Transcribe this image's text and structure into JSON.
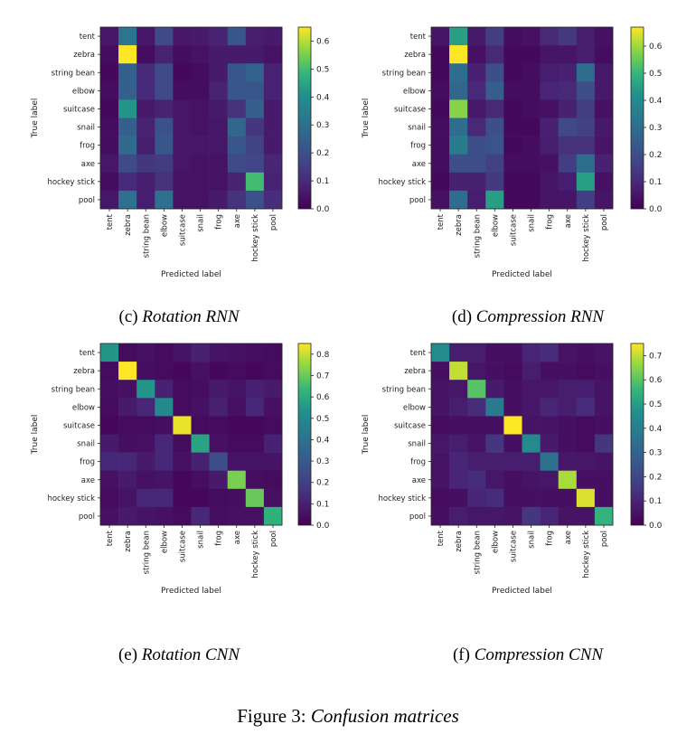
{
  "figure_caption": {
    "prefix": "Figure 3: ",
    "title": "Confusion matrices"
  },
  "chart_data": [
    {
      "type": "heatmap",
      "caption": {
        "label": "(c) ",
        "title": "Rotation RNN"
      },
      "xlabel": "Predicted label",
      "ylabel": "True label",
      "x_labels": [
        "tent",
        "zebra",
        "string bean",
        "elbow",
        "suitcase",
        "snail",
        "frog",
        "axe",
        "hockey stick",
        "pool"
      ],
      "y_labels": [
        "tent",
        "zebra",
        "string bean",
        "elbow",
        "suitcase",
        "snail",
        "frog",
        "axe",
        "hockey stick",
        "pool"
      ],
      "colorscale": "viridis",
      "vmin": 0.0,
      "vmax": 0.65,
      "colorbar_ticks": [
        "0.0",
        "0.1",
        "0.2",
        "0.3",
        "0.4",
        "0.5",
        "0.6"
      ],
      "values": [
        [
          0.05,
          0.32,
          0.05,
          0.18,
          0.05,
          0.06,
          0.08,
          0.22,
          0.07,
          0.06
        ],
        [
          0.03,
          0.65,
          0.03,
          0.08,
          0.03,
          0.04,
          0.06,
          0.06,
          0.06,
          0.04
        ],
        [
          0.02,
          0.25,
          0.1,
          0.18,
          0.02,
          0.03,
          0.06,
          0.22,
          0.26,
          0.08
        ],
        [
          0.03,
          0.25,
          0.1,
          0.18,
          0.03,
          0.03,
          0.08,
          0.22,
          0.22,
          0.08
        ],
        [
          0.02,
          0.42,
          0.06,
          0.08,
          0.05,
          0.04,
          0.06,
          0.12,
          0.25,
          0.06
        ],
        [
          0.03,
          0.25,
          0.08,
          0.2,
          0.05,
          0.04,
          0.05,
          0.27,
          0.13,
          0.06
        ],
        [
          0.03,
          0.28,
          0.07,
          0.22,
          0.05,
          0.05,
          0.05,
          0.22,
          0.16,
          0.06
        ],
        [
          0.05,
          0.18,
          0.13,
          0.14,
          0.05,
          0.04,
          0.04,
          0.18,
          0.17,
          0.09
        ],
        [
          0.03,
          0.1,
          0.07,
          0.12,
          0.04,
          0.04,
          0.04,
          0.08,
          0.5,
          0.08
        ],
        [
          0.05,
          0.3,
          0.07,
          0.3,
          0.04,
          0.04,
          0.06,
          0.12,
          0.2,
          0.11
        ]
      ]
    },
    {
      "type": "heatmap",
      "caption": {
        "label": "(d) ",
        "title": "Compression RNN"
      },
      "xlabel": "Predicted label",
      "ylabel": "True label",
      "x_labels": [
        "tent",
        "zebra",
        "string bean",
        "elbow",
        "suitcase",
        "snail",
        "frog",
        "axe",
        "hockey stick",
        "pool"
      ],
      "y_labels": [
        "tent",
        "zebra",
        "string bean",
        "elbow",
        "suitcase",
        "snail",
        "frog",
        "axe",
        "hockey stick",
        "pool"
      ],
      "colorscale": "viridis",
      "vmin": 0.0,
      "vmax": 0.67,
      "colorbar_ticks": [
        "0.0",
        "0.1",
        "0.2",
        "0.3",
        "0.4",
        "0.5",
        "0.6"
      ],
      "values": [
        [
          0.05,
          0.45,
          0.06,
          0.15,
          0.03,
          0.04,
          0.1,
          0.14,
          0.07,
          0.04
        ],
        [
          0.02,
          0.67,
          0.04,
          0.1,
          0.02,
          0.02,
          0.05,
          0.05,
          0.07,
          0.03
        ],
        [
          0.02,
          0.3,
          0.08,
          0.2,
          0.02,
          0.03,
          0.07,
          0.08,
          0.3,
          0.06
        ],
        [
          0.03,
          0.28,
          0.1,
          0.25,
          0.03,
          0.03,
          0.09,
          0.1,
          0.2,
          0.06
        ],
        [
          0.02,
          0.58,
          0.06,
          0.1,
          0.02,
          0.03,
          0.04,
          0.08,
          0.15,
          0.04
        ],
        [
          0.03,
          0.3,
          0.1,
          0.2,
          0.02,
          0.02,
          0.08,
          0.18,
          0.16,
          0.06
        ],
        [
          0.03,
          0.35,
          0.2,
          0.22,
          0.02,
          0.03,
          0.07,
          0.12,
          0.12,
          0.05
        ],
        [
          0.03,
          0.2,
          0.2,
          0.16,
          0.03,
          0.03,
          0.04,
          0.15,
          0.3,
          0.08
        ],
        [
          0.02,
          0.08,
          0.08,
          0.14,
          0.02,
          0.02,
          0.05,
          0.07,
          0.45,
          0.04
        ],
        [
          0.04,
          0.3,
          0.07,
          0.45,
          0.02,
          0.02,
          0.05,
          0.05,
          0.15,
          0.05
        ]
      ]
    },
    {
      "type": "heatmap",
      "caption": {
        "label": "(e) ",
        "title": "Rotation CNN"
      },
      "xlabel": "Predicted label",
      "ylabel": "True label",
      "x_labels": [
        "tent",
        "zebra",
        "string bean",
        "elbow",
        "suitcase",
        "snail",
        "frog",
        "axe",
        "hockey stick",
        "pool"
      ],
      "y_labels": [
        "tent",
        "zebra",
        "string bean",
        "elbow",
        "suitcase",
        "snail",
        "frog",
        "axe",
        "hockey stick",
        "pool"
      ],
      "colorscale": "viridis",
      "vmin": 0.0,
      "vmax": 0.85,
      "colorbar_ticks": [
        "0.0",
        "0.1",
        "0.2",
        "0.3",
        "0.4",
        "0.5",
        "0.6",
        "0.7",
        "0.8"
      ],
      "values": [
        [
          0.55,
          0.03,
          0.05,
          0.03,
          0.06,
          0.1,
          0.06,
          0.05,
          0.04,
          0.03
        ],
        [
          0.03,
          0.85,
          0.04,
          0.03,
          0.02,
          0.05,
          0.02,
          0.03,
          0.02,
          0.03
        ],
        [
          0.04,
          0.05,
          0.55,
          0.1,
          0.03,
          0.04,
          0.08,
          0.06,
          0.1,
          0.08
        ],
        [
          0.03,
          0.08,
          0.12,
          0.5,
          0.03,
          0.05,
          0.1,
          0.05,
          0.12,
          0.05
        ],
        [
          0.02,
          0.03,
          0.03,
          0.04,
          0.83,
          0.03,
          0.03,
          0.02,
          0.02,
          0.03
        ],
        [
          0.08,
          0.04,
          0.05,
          0.12,
          0.03,
          0.58,
          0.05,
          0.03,
          0.03,
          0.1
        ],
        [
          0.12,
          0.12,
          0.08,
          0.12,
          0.05,
          0.1,
          0.25,
          0.06,
          0.06,
          0.06
        ],
        [
          0.05,
          0.08,
          0.05,
          0.06,
          0.02,
          0.04,
          0.08,
          0.72,
          0.04,
          0.03
        ],
        [
          0.03,
          0.06,
          0.12,
          0.12,
          0.02,
          0.02,
          0.03,
          0.04,
          0.7,
          0.05
        ],
        [
          0.05,
          0.08,
          0.06,
          0.05,
          0.03,
          0.12,
          0.04,
          0.05,
          0.05,
          0.62
        ]
      ]
    },
    {
      "type": "heatmap",
      "caption": {
        "label": "(f) ",
        "title": "Compression CNN"
      },
      "xlabel": "Predicted label",
      "ylabel": "True label",
      "x_labels": [
        "tent",
        "zebra",
        "string bean",
        "elbow",
        "suitcase",
        "snail",
        "frog",
        "axe",
        "hockey stick",
        "pool"
      ],
      "y_labels": [
        "tent",
        "zebra",
        "string bean",
        "elbow",
        "suitcase",
        "snail",
        "frog",
        "axe",
        "hockey stick",
        "pool"
      ],
      "colorscale": "viridis",
      "vmin": 0.0,
      "vmax": 0.75,
      "colorbar_ticks": [
        "0.0",
        "0.1",
        "0.2",
        "0.3",
        "0.4",
        "0.5",
        "0.6",
        "0.7"
      ],
      "values": [
        [
          0.45,
          0.08,
          0.08,
          0.04,
          0.04,
          0.1,
          0.12,
          0.05,
          0.04,
          0.05
        ],
        [
          0.04,
          0.7,
          0.06,
          0.04,
          0.03,
          0.08,
          0.04,
          0.04,
          0.03,
          0.04
        ],
        [
          0.05,
          0.06,
          0.6,
          0.07,
          0.04,
          0.06,
          0.06,
          0.08,
          0.08,
          0.05
        ],
        [
          0.05,
          0.08,
          0.12,
          0.38,
          0.04,
          0.06,
          0.1,
          0.08,
          0.12,
          0.05
        ],
        [
          0.03,
          0.04,
          0.04,
          0.04,
          0.75,
          0.05,
          0.05,
          0.04,
          0.03,
          0.04
        ],
        [
          0.06,
          0.08,
          0.05,
          0.15,
          0.04,
          0.45,
          0.07,
          0.04,
          0.03,
          0.15
        ],
        [
          0.05,
          0.1,
          0.08,
          0.08,
          0.08,
          0.08,
          0.35,
          0.06,
          0.06,
          0.05
        ],
        [
          0.05,
          0.1,
          0.12,
          0.06,
          0.04,
          0.05,
          0.06,
          0.68,
          0.04,
          0.04
        ],
        [
          0.03,
          0.04,
          0.1,
          0.12,
          0.04,
          0.04,
          0.04,
          0.04,
          0.72,
          0.04
        ],
        [
          0.04,
          0.08,
          0.06,
          0.06,
          0.05,
          0.15,
          0.1,
          0.05,
          0.05,
          0.55
        ]
      ]
    }
  ]
}
